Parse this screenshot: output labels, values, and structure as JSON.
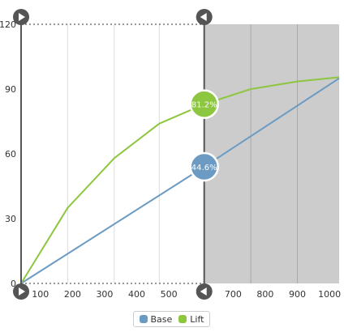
{
  "chart_data": {
    "type": "line",
    "x_ticks": [
      100,
      200,
      300,
      400,
      500,
      700,
      800,
      900,
      1000
    ],
    "y_ticks": [
      0,
      30,
      60,
      90,
      120
    ],
    "xlim": [
      40,
      1030
    ],
    "ylim": [
      0,
      120
    ],
    "shaded_from_x": 610,
    "series": [
      {
        "name": "Base",
        "color": "#6b9bc3",
        "x": [
          40,
          610,
          1030
        ],
        "y": [
          0,
          54,
          95
        ]
      },
      {
        "name": "Lift",
        "color": "#8dc63f",
        "x": [
          40,
          185,
          330,
          470,
          610,
          755,
          900,
          1030
        ],
        "y": [
          0,
          35,
          58,
          74,
          83,
          90,
          93.5,
          95.5
        ]
      }
    ],
    "markers": [
      {
        "series": "Base",
        "x": 610,
        "y": 54,
        "label": "44.6%"
      },
      {
        "series": "Lift",
        "x": 610,
        "y": 83,
        "label": "81.2%"
      }
    ],
    "legend": {
      "position": "bottom",
      "items": [
        {
          "label": "Base",
          "color": "#6b9bc3"
        },
        {
          "label": "Lift",
          "color": "#8dc63f"
        }
      ]
    }
  }
}
